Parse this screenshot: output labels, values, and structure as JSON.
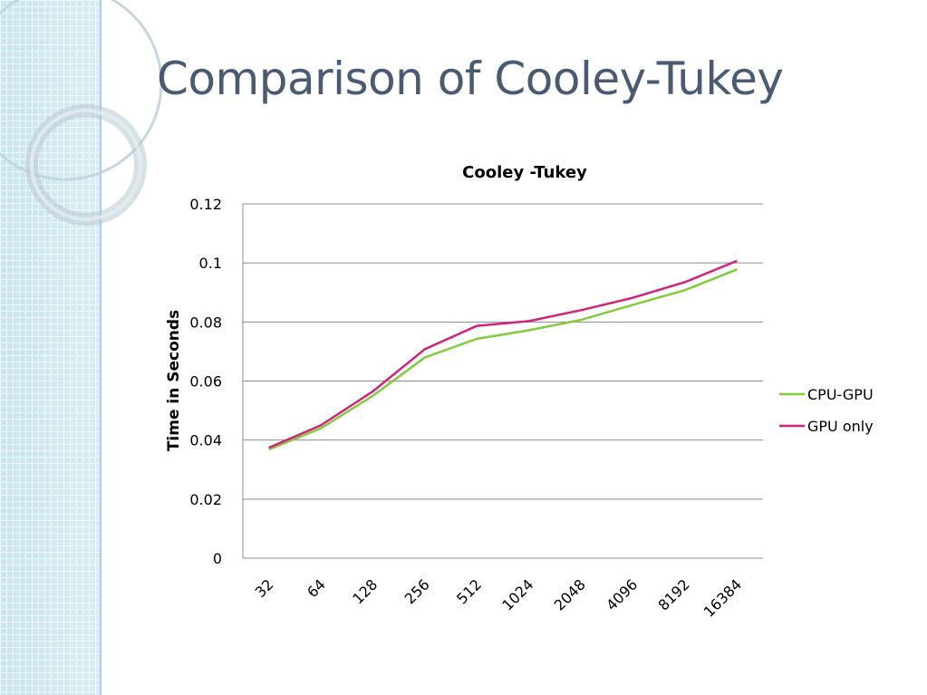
{
  "slide": {
    "title": "Comparison of Cooley-Tukey"
  },
  "colors": {
    "title": "#4a5a72",
    "sidebar": "#c9e6f2",
    "sidebar_grid": "#ffffff",
    "gridline": "#8c8c8c",
    "cpu_gpu": "#7fcc3c",
    "gpu_only": "#d6217a"
  },
  "chart_data": {
    "type": "line",
    "title": "Cooley -Tukey",
    "xlabel": "",
    "ylabel": "Time in Seconds",
    "categories": [
      "32",
      "64",
      "128",
      "256",
      "512",
      "1024",
      "2048",
      "4096",
      "8192",
      "16384"
    ],
    "series": [
      {
        "name": "CPU-GPU",
        "color": "#7fcc3c",
        "values": [
          0.0368,
          0.044,
          0.055,
          0.068,
          0.0743,
          0.0772,
          0.0807,
          0.0858,
          0.0908,
          0.0978
        ]
      },
      {
        "name": "GPU only",
        "color": "#d6217a",
        "values": [
          0.0374,
          0.045,
          0.0565,
          0.0708,
          0.0787,
          0.0803,
          0.084,
          0.0882,
          0.0935,
          0.1007
        ]
      }
    ],
    "ylim": [
      0,
      0.12
    ],
    "yticks": [
      "0",
      "0.02",
      "0.04",
      "0.06",
      "0.08",
      "0.1",
      "0.12"
    ],
    "ytick_values": [
      0,
      0.02,
      0.04,
      0.06,
      0.08,
      0.1,
      0.12
    ],
    "grid": true,
    "legend": "right"
  }
}
